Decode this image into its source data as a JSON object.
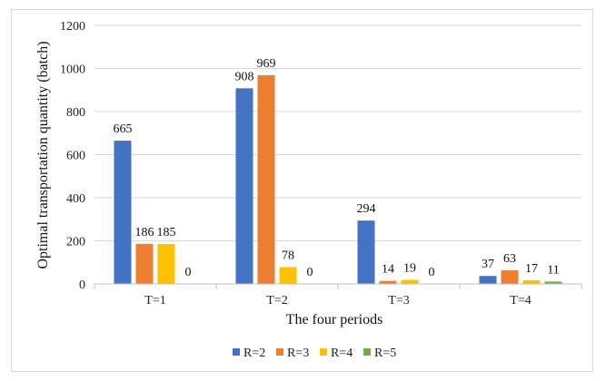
{
  "chart_data": {
    "type": "bar",
    "title": "",
    "xlabel": "The four periods",
    "ylabel": "Optimal transportation quantity (batch)",
    "categories": [
      "T=1",
      "T=2",
      "T=3",
      "T=4"
    ],
    "ylim": [
      0,
      1200
    ],
    "yticks": [
      0,
      200,
      400,
      600,
      800,
      1000,
      1200
    ],
    "grid": true,
    "legend_position": "bottom",
    "series": [
      {
        "name": "R=2",
        "color": "#4472C4",
        "values": [
          665,
          908,
          294,
          37
        ],
        "labels": [
          "665",
          "908",
          "294",
          "37"
        ]
      },
      {
        "name": "R=3",
        "color": "#ED7D31",
        "values": [
          186,
          969,
          14,
          63
        ],
        "labels": [
          "186",
          "969",
          "14",
          "63"
        ]
      },
      {
        "name": "R=4",
        "color": "#FFC000",
        "values": [
          185,
          78,
          19,
          17
        ],
        "labels": [
          "185",
          "78",
          "19",
          "17"
        ]
      },
      {
        "name": "R=5",
        "color": "#70AD47",
        "values": [
          0,
          0,
          0,
          11
        ],
        "labels": [
          "0",
          "0",
          "0",
          "11"
        ]
      }
    ]
  }
}
